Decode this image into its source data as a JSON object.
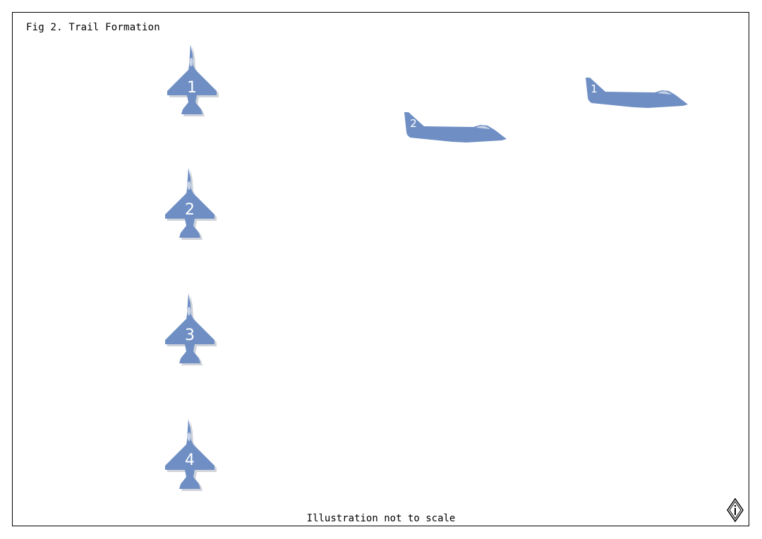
{
  "title": "Fig 2. Trail Formation",
  "footnote": "Illustration not to scale",
  "colors": {
    "aircraft": "#6f8fc4",
    "shadow": "#cfd3da",
    "canopy": "#c6d2e6",
    "label": "#ffffff"
  },
  "top_view": [
    {
      "number": "1"
    },
    {
      "number": "2"
    },
    {
      "number": "3"
    },
    {
      "number": "4"
    }
  ],
  "side_view": [
    {
      "number": "1"
    },
    {
      "number": "2"
    }
  ],
  "logo": "diamond-logo"
}
